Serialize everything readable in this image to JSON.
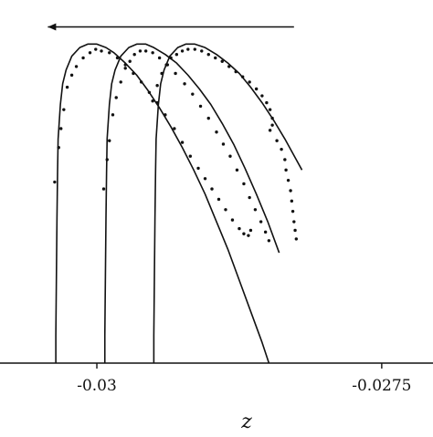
{
  "chart_data": {
    "type": "line",
    "title": "",
    "xlabel": "z",
    "ylabel": "",
    "xlim": [
      -0.03085,
      -0.02705
    ],
    "ylim": [
      0,
      1
    ],
    "x_ticks": [
      {
        "value": -0.03,
        "label": "-0.03"
      },
      {
        "value": -0.0275,
        "label": "-0.0275"
      }
    ],
    "grid": false,
    "legend": "none",
    "annotation_arrow": {
      "direction": "left",
      "x_from": -0.02827,
      "x_to": -0.03043,
      "y": 0.975
    },
    "series": [
      {
        "kind": "line",
        "points": [
          [
            -0.03036,
            0
          ],
          [
            -0.03036,
            0.08
          ],
          [
            -0.030355,
            0.25
          ],
          [
            -0.03035,
            0.42
          ],
          [
            -0.030345,
            0.55
          ],
          [
            -0.03034,
            0.65
          ],
          [
            -0.03032,
            0.75
          ],
          [
            -0.0303,
            0.81
          ],
          [
            -0.03027,
            0.85
          ],
          [
            -0.03022,
            0.89
          ],
          [
            -0.03015,
            0.915
          ],
          [
            -0.03008,
            0.925
          ],
          [
            -0.03,
            0.925
          ],
          [
            -0.02992,
            0.915
          ],
          [
            -0.02985,
            0.9
          ],
          [
            -0.02975,
            0.87
          ],
          [
            -0.02965,
            0.835
          ],
          [
            -0.02955,
            0.79
          ],
          [
            -0.02945,
            0.74
          ],
          [
            -0.02935,
            0.685
          ],
          [
            -0.02925,
            0.625
          ],
          [
            -0.02915,
            0.56
          ],
          [
            -0.02905,
            0.49
          ],
          [
            -0.02895,
            0.41
          ],
          [
            -0.02885,
            0.33
          ],
          [
            -0.02875,
            0.24
          ],
          [
            -0.02865,
            0.15
          ],
          [
            -0.02855,
            0.06
          ],
          [
            -0.02849,
            0
          ]
        ]
      },
      {
        "kind": "line",
        "points": [
          [
            -0.02993,
            0
          ],
          [
            -0.02993,
            0.08
          ],
          [
            -0.029925,
            0.25
          ],
          [
            -0.02992,
            0.42
          ],
          [
            -0.029915,
            0.55
          ],
          [
            -0.02991,
            0.65
          ],
          [
            -0.02989,
            0.75
          ],
          [
            -0.02987,
            0.81
          ],
          [
            -0.02984,
            0.85
          ],
          [
            -0.02979,
            0.89
          ],
          [
            -0.02972,
            0.915
          ],
          [
            -0.02965,
            0.925
          ],
          [
            -0.02957,
            0.925
          ],
          [
            -0.0295,
            0.915
          ],
          [
            -0.0294,
            0.895
          ],
          [
            -0.0293,
            0.87
          ],
          [
            -0.0292,
            0.835
          ],
          [
            -0.0291,
            0.795
          ],
          [
            -0.029,
            0.75
          ],
          [
            -0.0289,
            0.695
          ],
          [
            -0.0288,
            0.635
          ],
          [
            -0.0287,
            0.565
          ],
          [
            -0.0286,
            0.49
          ],
          [
            -0.0285,
            0.41
          ],
          [
            -0.0284,
            0.32
          ]
        ]
      },
      {
        "kind": "line",
        "points": [
          [
            -0.0295,
            0
          ],
          [
            -0.0295,
            0.08
          ],
          [
            -0.029495,
            0.25
          ],
          [
            -0.02949,
            0.42
          ],
          [
            -0.029485,
            0.55
          ],
          [
            -0.02948,
            0.65
          ],
          [
            -0.02946,
            0.75
          ],
          [
            -0.02944,
            0.81
          ],
          [
            -0.02941,
            0.85
          ],
          [
            -0.02936,
            0.89
          ],
          [
            -0.02929,
            0.915
          ],
          [
            -0.02922,
            0.925
          ],
          [
            -0.02914,
            0.925
          ],
          [
            -0.02905,
            0.915
          ],
          [
            -0.02895,
            0.895
          ],
          [
            -0.02885,
            0.87
          ],
          [
            -0.02875,
            0.84
          ],
          [
            -0.02865,
            0.8
          ],
          [
            -0.02855,
            0.755
          ],
          [
            -0.02845,
            0.705
          ],
          [
            -0.02835,
            0.65
          ],
          [
            -0.02825,
            0.59
          ],
          [
            -0.0282,
            0.56
          ]
        ]
      },
      {
        "kind": "scatter",
        "points": [
          [
            -0.03037,
            0.525
          ],
          [
            -0.030335,
            0.625
          ],
          [
            -0.030315,
            0.68
          ],
          [
            -0.03029,
            0.735
          ],
          [
            -0.03026,
            0.8
          ],
          [
            -0.03022,
            0.835
          ],
          [
            -0.03018,
            0.86
          ],
          [
            -0.03012,
            0.885
          ],
          [
            -0.03006,
            0.9
          ],
          [
            -0.03001,
            0.91
          ],
          [
            -0.02996,
            0.905
          ],
          [
            -0.02989,
            0.9
          ],
          [
            -0.02982,
            0.885
          ],
          [
            -0.02975,
            0.865
          ],
          [
            -0.02968,
            0.84
          ],
          [
            -0.02961,
            0.815
          ],
          [
            -0.02954,
            0.785
          ],
          [
            -0.02947,
            0.755
          ],
          [
            -0.0294,
            0.72
          ],
          [
            -0.02932,
            0.68
          ],
          [
            -0.02925,
            0.64
          ],
          [
            -0.02918,
            0.6
          ],
          [
            -0.02911,
            0.565
          ],
          [
            -0.02905,
            0.535
          ],
          [
            -0.02899,
            0.505
          ],
          [
            -0.02893,
            0.475
          ],
          [
            -0.02887,
            0.445
          ],
          [
            -0.02881,
            0.415
          ],
          [
            -0.02875,
            0.39
          ],
          [
            -0.02871,
            0.375
          ],
          [
            -0.02867,
            0.37
          ],
          [
            -0.02865,
            0.385
          ]
        ]
      },
      {
        "kind": "scatter",
        "points": [
          [
            -0.02994,
            0.505
          ],
          [
            -0.02991,
            0.59
          ],
          [
            -0.02989,
            0.645
          ],
          [
            -0.02986,
            0.72
          ],
          [
            -0.02983,
            0.77
          ],
          [
            -0.02979,
            0.815
          ],
          [
            -0.02975,
            0.855
          ],
          [
            -0.02971,
            0.875
          ],
          [
            -0.02967,
            0.895
          ],
          [
            -0.02962,
            0.905
          ],
          [
            -0.02957,
            0.905
          ],
          [
            -0.02951,
            0.9
          ],
          [
            -0.02945,
            0.885
          ],
          [
            -0.02938,
            0.865
          ],
          [
            -0.02931,
            0.84
          ],
          [
            -0.02923,
            0.81
          ],
          [
            -0.02916,
            0.78
          ],
          [
            -0.02909,
            0.745
          ],
          [
            -0.02902,
            0.71
          ],
          [
            -0.02895,
            0.67
          ],
          [
            -0.02889,
            0.635
          ],
          [
            -0.02883,
            0.6
          ],
          [
            -0.02877,
            0.56
          ],
          [
            -0.02871,
            0.52
          ],
          [
            -0.02866,
            0.48
          ],
          [
            -0.02861,
            0.445
          ],
          [
            -0.02856,
            0.41
          ],
          [
            -0.02852,
            0.38
          ],
          [
            -0.02849,
            0.355
          ]
        ]
      },
      {
        "kind": "scatter",
        "points": [
          [
            -0.02951,
            0.76
          ],
          [
            -0.02947,
            0.805
          ],
          [
            -0.02943,
            0.84
          ],
          [
            -0.02939,
            0.865
          ],
          [
            -0.02935,
            0.885
          ],
          [
            -0.0293,
            0.895
          ],
          [
            -0.02925,
            0.905
          ],
          [
            -0.0292,
            0.91
          ],
          [
            -0.02914,
            0.91
          ],
          [
            -0.02908,
            0.905
          ],
          [
            -0.02902,
            0.895
          ],
          [
            -0.02896,
            0.885
          ],
          [
            -0.0289,
            0.875
          ],
          [
            -0.02884,
            0.86
          ],
          [
            -0.02878,
            0.845
          ],
          [
            -0.02872,
            0.83
          ],
          [
            -0.02866,
            0.815
          ],
          [
            -0.0286,
            0.795
          ],
          [
            -0.02855,
            0.775
          ],
          [
            -0.02851,
            0.755
          ],
          [
            -0.02848,
            0.735
          ],
          [
            -0.02846,
            0.71
          ],
          [
            -0.02846,
            0.69
          ],
          [
            -0.02848,
            0.675
          ],
          [
            -0.02842,
            0.645
          ],
          [
            -0.02838,
            0.62
          ],
          [
            -0.02835,
            0.59
          ],
          [
            -0.02834,
            0.56
          ],
          [
            -0.02832,
            0.53
          ],
          [
            -0.0283,
            0.5
          ],
          [
            -0.02829,
            0.47
          ],
          [
            -0.02828,
            0.44
          ],
          [
            -0.02827,
            0.41
          ],
          [
            -0.02826,
            0.385
          ],
          [
            -0.02825,
            0.36
          ]
        ]
      }
    ]
  }
}
